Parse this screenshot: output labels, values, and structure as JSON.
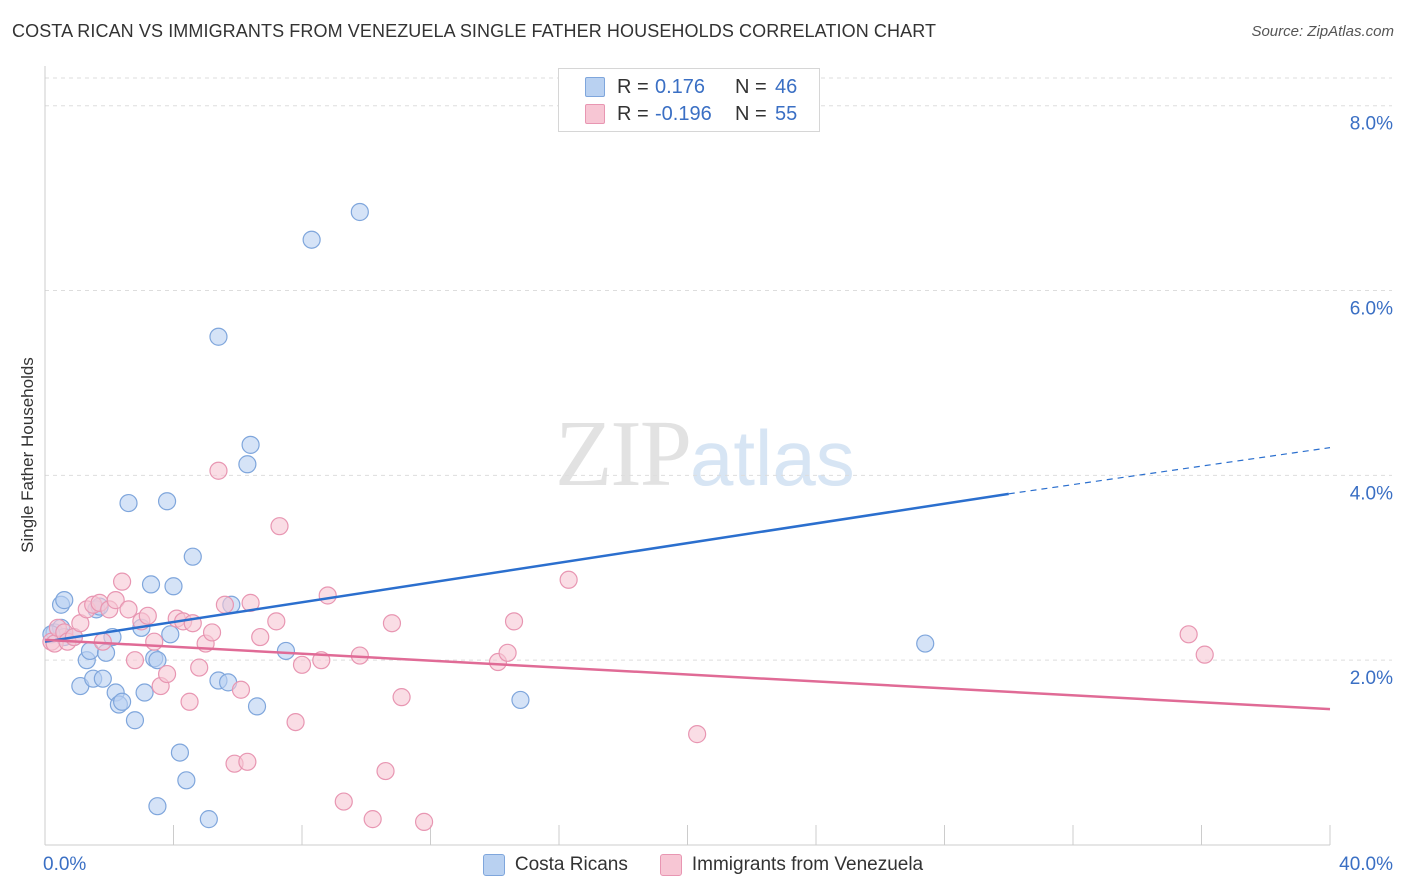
{
  "chart_data": {
    "type": "scatter",
    "title": "COSTA RICAN VS IMMIGRANTS FROM VENEZUELA SINGLE FATHER HOUSEHOLDS CORRELATION CHART",
    "source": "Source: ZipAtlas.com",
    "ylabel": "Single Father Households",
    "xlabel": "",
    "xlim": [
      0,
      40
    ],
    "ylim": [
      0,
      8.3
    ],
    "x_tick_labels": [
      "0.0%",
      "40.0%"
    ],
    "y_ticks": [
      2,
      4,
      6,
      8
    ],
    "y_tick_labels": [
      "2.0%",
      "4.0%",
      "6.0%",
      "8.0%"
    ],
    "watermark": {
      "zip": "ZIP",
      "atlas": "atlas"
    },
    "colors": {
      "blue_fill": "#b9d1f1",
      "blue_stroke": "#7fa6dc",
      "blue_line": "#2b6fce",
      "pink_fill": "#f7c6d4",
      "pink_stroke": "#e896b2",
      "pink_line": "#e06b96",
      "value_text": "#3a6fc4",
      "grid": "#dddddd"
    },
    "legend": [
      {
        "r_label": "R =",
        "r_value": "0.176",
        "n_label": "N =",
        "n_value": "46"
      },
      {
        "r_label": "R =",
        "r_value": "-0.196",
        "n_label": "N =",
        "n_value": "55"
      }
    ],
    "series": [
      {
        "name": "Costa Ricans",
        "trend": {
          "x0": 0,
          "y0": 2.2,
          "x1": 30,
          "y1": 3.8,
          "x_dash_end": 40,
          "y_dash_end": 4.3
        },
        "points": [
          [
            0.3,
            2.3
          ],
          [
            0.5,
            2.35
          ],
          [
            0.6,
            2.25
          ],
          [
            0.5,
            2.6
          ],
          [
            0.6,
            2.65
          ],
          [
            0.9,
            2.25
          ],
          [
            1.1,
            1.72
          ],
          [
            1.3,
            2.0
          ],
          [
            1.4,
            2.1
          ],
          [
            1.5,
            1.8
          ],
          [
            1.6,
            2.55
          ],
          [
            1.7,
            2.58
          ],
          [
            1.8,
            1.8
          ],
          [
            1.9,
            2.08
          ],
          [
            2.1,
            2.25
          ],
          [
            2.2,
            1.65
          ],
          [
            2.3,
            1.52
          ],
          [
            2.4,
            1.55
          ],
          [
            2.6,
            3.7
          ],
          [
            2.8,
            1.35
          ],
          [
            3.0,
            2.35
          ],
          [
            3.1,
            1.65
          ],
          [
            3.3,
            2.82
          ],
          [
            3.4,
            2.02
          ],
          [
            3.5,
            2.0
          ],
          [
            3.5,
            0.42
          ],
          [
            3.8,
            3.72
          ],
          [
            3.9,
            2.28
          ],
          [
            4.0,
            2.8
          ],
          [
            4.2,
            1.0
          ],
          [
            4.4,
            0.7
          ],
          [
            4.6,
            3.12
          ],
          [
            5.1,
            0.28
          ],
          [
            5.4,
            5.5
          ],
          [
            5.4,
            1.78
          ],
          [
            5.7,
            1.76
          ],
          [
            5.8,
            2.6
          ],
          [
            6.3,
            4.12
          ],
          [
            6.4,
            4.33
          ],
          [
            6.6,
            1.5
          ],
          [
            7.5,
            2.1
          ],
          [
            8.3,
            6.55
          ],
          [
            9.8,
            6.85
          ],
          [
            14.8,
            1.57
          ],
          [
            27.4,
            2.18
          ],
          [
            0.2,
            2.28
          ]
        ]
      },
      {
        "name": "Immigrants from Venezuela",
        "trend": {
          "x0": 0,
          "y0": 2.22,
          "x1": 40,
          "y1": 1.47
        },
        "points": [
          [
            0.2,
            2.2
          ],
          [
            0.3,
            2.18
          ],
          [
            0.4,
            2.35
          ],
          [
            0.6,
            2.3
          ],
          [
            0.7,
            2.2
          ],
          [
            0.9,
            2.25
          ],
          [
            1.1,
            2.4
          ],
          [
            1.3,
            2.55
          ],
          [
            1.5,
            2.6
          ],
          [
            1.7,
            2.62
          ],
          [
            1.8,
            2.2
          ],
          [
            2.0,
            2.55
          ],
          [
            2.2,
            2.65
          ],
          [
            2.4,
            2.85
          ],
          [
            2.6,
            2.55
          ],
          [
            2.8,
            2.0
          ],
          [
            3.0,
            2.42
          ],
          [
            3.2,
            2.48
          ],
          [
            3.4,
            2.2
          ],
          [
            3.6,
            1.72
          ],
          [
            3.8,
            1.85
          ],
          [
            4.1,
            2.45
          ],
          [
            4.3,
            2.42
          ],
          [
            4.5,
            1.55
          ],
          [
            4.6,
            2.4
          ],
          [
            4.8,
            1.92
          ],
          [
            5.0,
            2.18
          ],
          [
            5.2,
            2.3
          ],
          [
            5.4,
            4.05
          ],
          [
            5.6,
            2.6
          ],
          [
            5.9,
            0.88
          ],
          [
            6.1,
            1.68
          ],
          [
            6.3,
            0.9
          ],
          [
            6.4,
            2.62
          ],
          [
            6.7,
            2.25
          ],
          [
            7.2,
            2.42
          ],
          [
            7.3,
            3.45
          ],
          [
            7.8,
            1.33
          ],
          [
            8.0,
            1.95
          ],
          [
            8.6,
            2.0
          ],
          [
            8.8,
            2.7
          ],
          [
            9.3,
            0.47
          ],
          [
            9.8,
            2.05
          ],
          [
            10.2,
            0.28
          ],
          [
            10.6,
            0.8
          ],
          [
            10.8,
            2.4
          ],
          [
            11.1,
            1.6
          ],
          [
            11.8,
            0.25
          ],
          [
            14.1,
            1.98
          ],
          [
            14.4,
            2.08
          ],
          [
            14.6,
            2.42
          ],
          [
            16.3,
            2.87
          ],
          [
            20.3,
            1.2
          ],
          [
            35.6,
            2.28
          ],
          [
            36.1,
            2.06
          ]
        ]
      }
    ]
  }
}
